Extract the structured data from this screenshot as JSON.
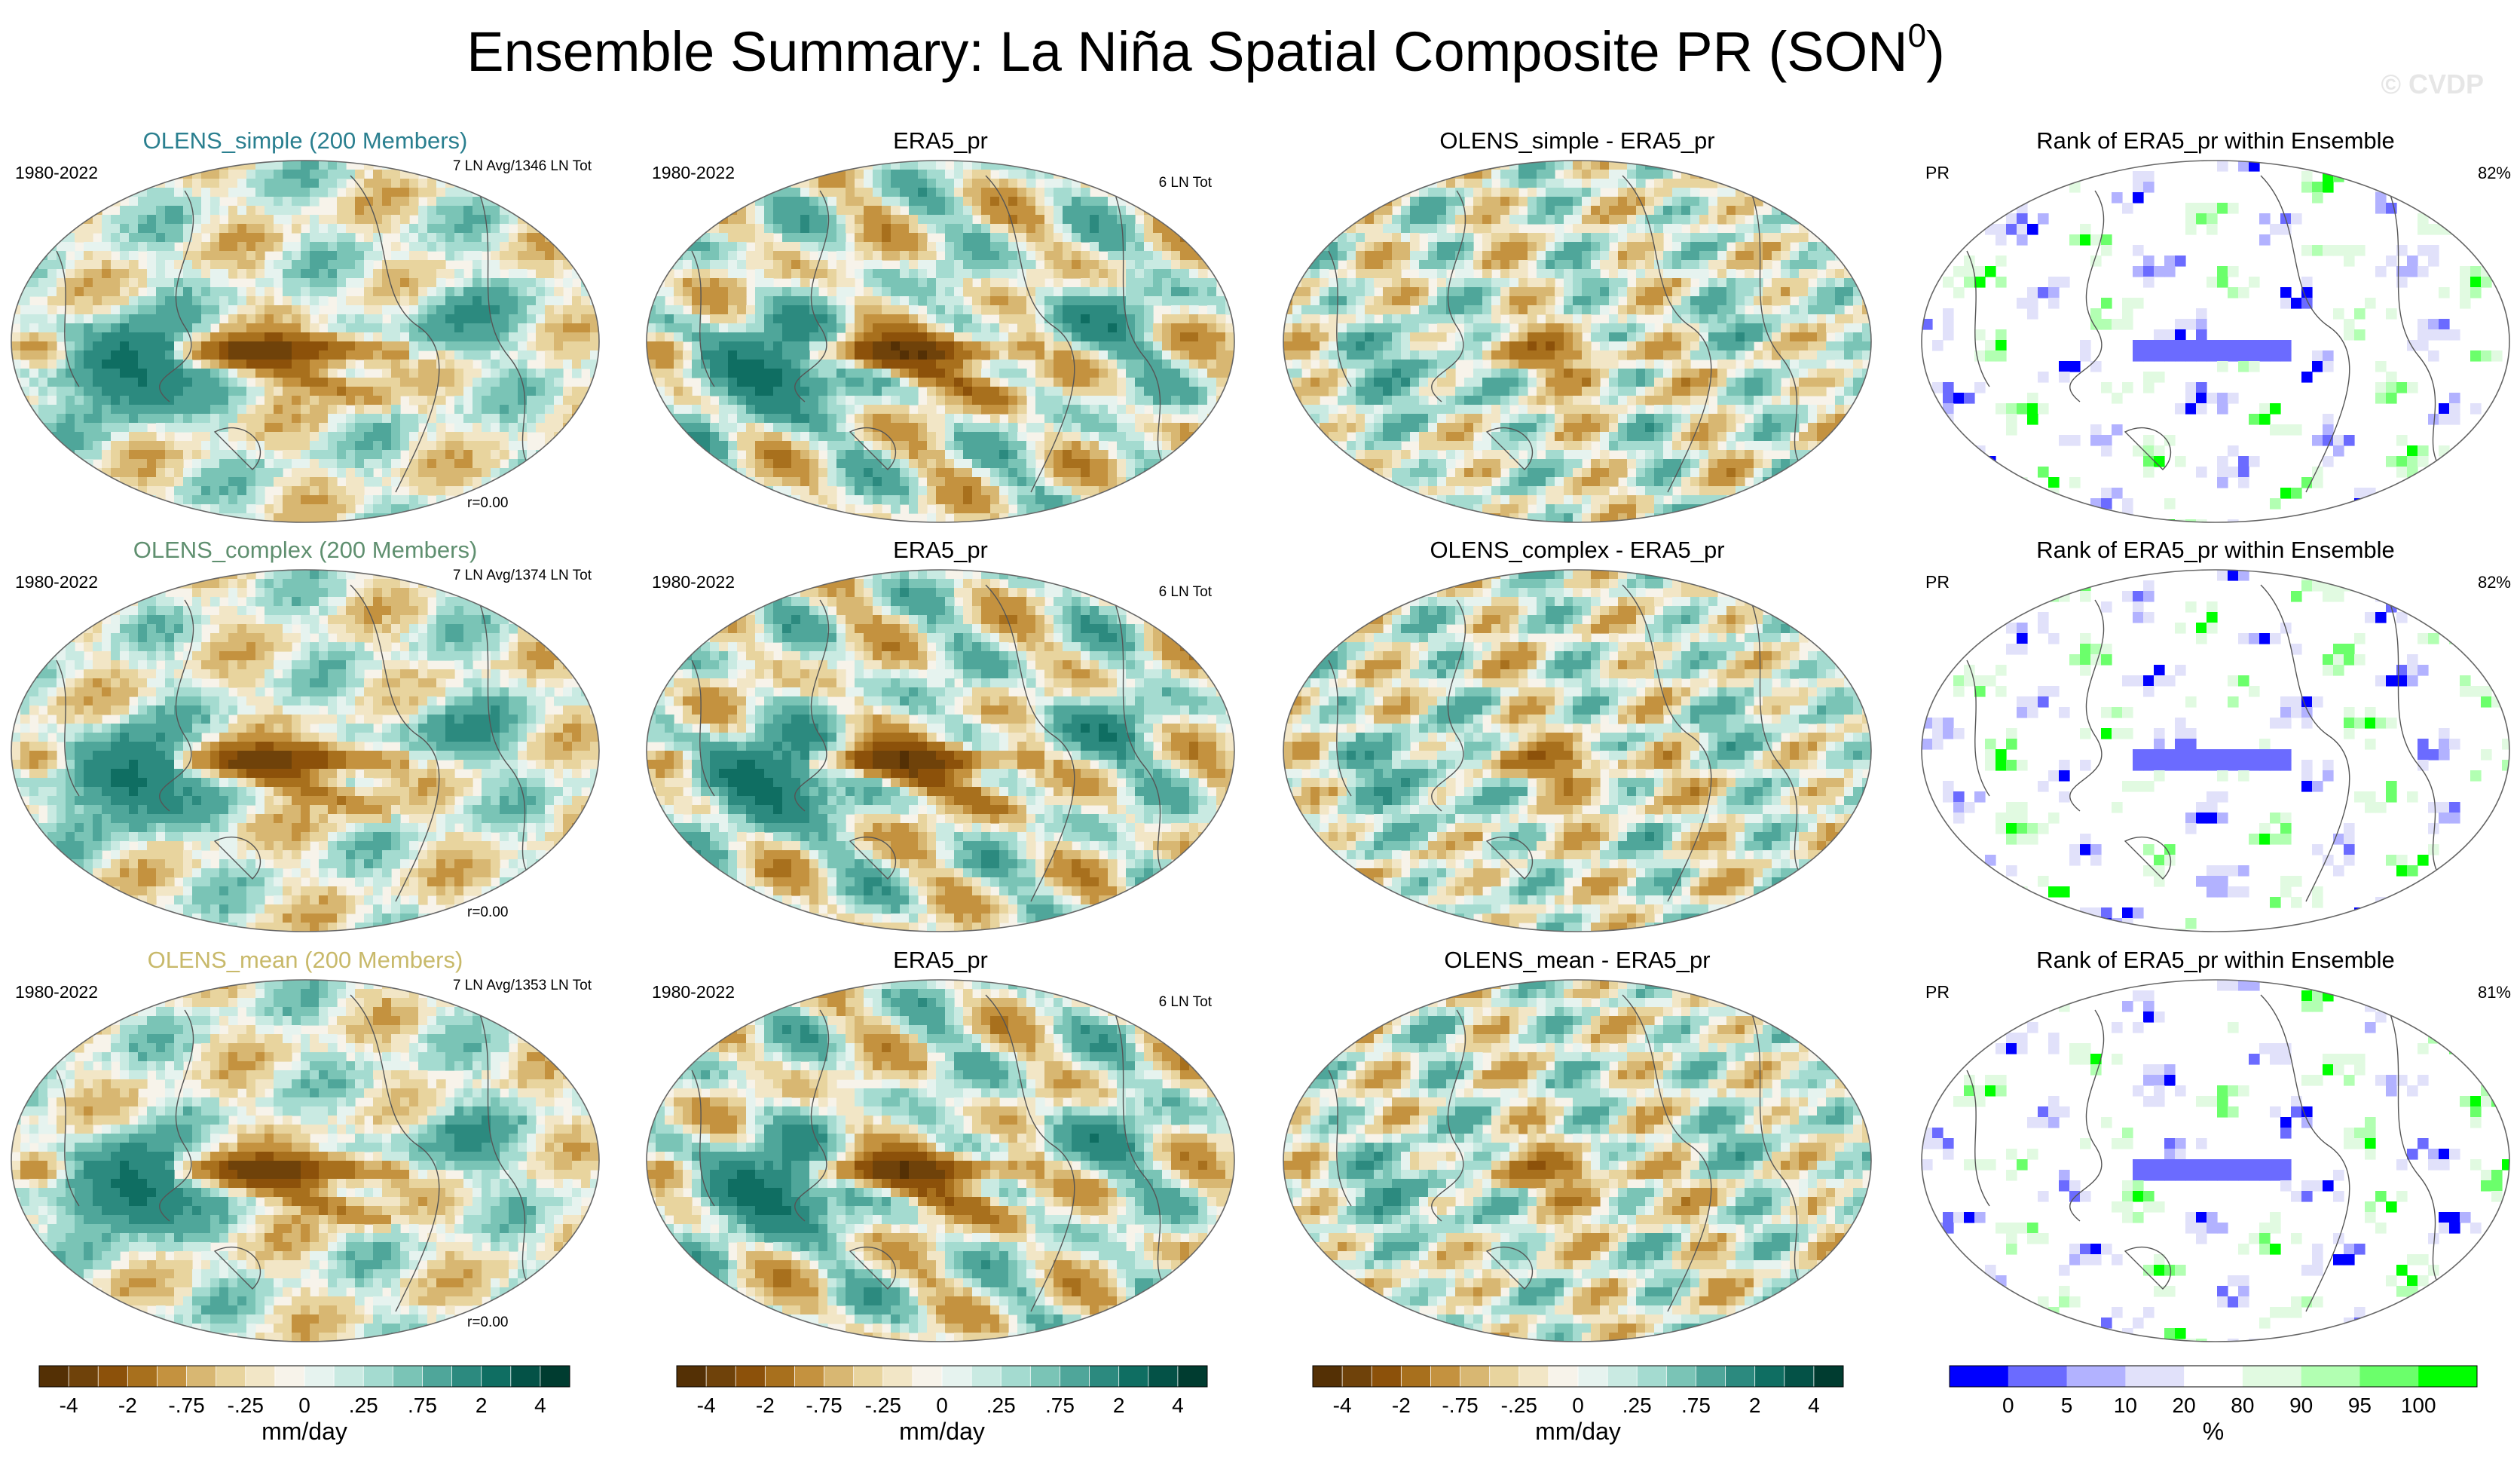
{
  "title": "Ensemble Summary: La Niña Spatial Composite PR (SON",
  "title_sup": "0",
  "title_close": ")",
  "watermark": "© CVDP",
  "colors": {
    "brown_dark": "#543005",
    "teal_dark": "#003c30",
    "rank_blue": "#0000ff",
    "rank_green": "#00ff00",
    "coast": "#555555"
  },
  "chart_data": [
    {
      "type": "heatmap",
      "row": 0,
      "col": 0,
      "title": "OLENS_simple (200 Members)",
      "title_color": "#2a7f8f",
      "left_label": "1980-2022",
      "right_label": "7 LN Avg/1346 LN Tot",
      "corr": "r=0.00",
      "field": "ensemble"
    },
    {
      "type": "heatmap",
      "row": 0,
      "col": 1,
      "title": "ERA5_pr",
      "title_color": "#000000",
      "left_label": "1980-2022",
      "right_label": "6 LN Tot",
      "field": "obs"
    },
    {
      "type": "heatmap",
      "row": 0,
      "col": 2,
      "title": "OLENS_simple - ERA5_pr",
      "title_color": "#000000",
      "left_label": "",
      "right_label": "",
      "field": "diff"
    },
    {
      "type": "heatmap",
      "row": 0,
      "col": 3,
      "title": "Rank of ERA5_pr within Ensemble",
      "title_color": "#000000",
      "left_label": "PR",
      "right_label": "82%",
      "field": "rank"
    },
    {
      "type": "heatmap",
      "row": 1,
      "col": 0,
      "title": "OLENS_complex (200 Members)",
      "title_color": "#5f8f6f",
      "left_label": "1980-2022",
      "right_label": "7 LN Avg/1374 LN Tot",
      "corr": "r=0.00",
      "field": "ensemble"
    },
    {
      "type": "heatmap",
      "row": 1,
      "col": 1,
      "title": "ERA5_pr",
      "title_color": "#000000",
      "left_label": "1980-2022",
      "right_label": "6 LN Tot",
      "field": "obs"
    },
    {
      "type": "heatmap",
      "row": 1,
      "col": 2,
      "title": "OLENS_complex - ERA5_pr",
      "title_color": "#000000",
      "left_label": "",
      "right_label": "",
      "field": "diff"
    },
    {
      "type": "heatmap",
      "row": 1,
      "col": 3,
      "title": "Rank of ERA5_pr within Ensemble",
      "title_color": "#000000",
      "left_label": "PR",
      "right_label": "82%",
      "field": "rank"
    },
    {
      "type": "heatmap",
      "row": 2,
      "col": 0,
      "title": "OLENS_mean (200 Members)",
      "title_color": "#c8b96a",
      "left_label": "1980-2022",
      "right_label": "7 LN Avg/1353 LN Tot",
      "corr": "r=0.00",
      "field": "ensemble"
    },
    {
      "type": "heatmap",
      "row": 2,
      "col": 1,
      "title": "ERA5_pr",
      "title_color": "#000000",
      "left_label": "1980-2022",
      "right_label": "6 LN Tot",
      "field": "obs"
    },
    {
      "type": "heatmap",
      "row": 2,
      "col": 2,
      "title": "OLENS_mean - ERA5_pr",
      "title_color": "#000000",
      "left_label": "",
      "right_label": "",
      "field": "diff"
    },
    {
      "type": "heatmap",
      "row": 2,
      "col": 3,
      "title": "Rank of ERA5_pr within Ensemble",
      "title_color": "#000000",
      "left_label": "PR",
      "right_label": "81%",
      "field": "rank"
    }
  ],
  "colorbars": [
    {
      "unit": "mm/day",
      "labels": [
        "-4",
        "-2",
        "-.75",
        "-.25",
        "0",
        ".25",
        ".75",
        "2",
        "4"
      ],
      "colors": [
        "#543005",
        "#6f420a",
        "#8c510a",
        "#a8701d",
        "#c4923f",
        "#d8b772",
        "#e8d49e",
        "#f2e6c6",
        "#f7f3ea",
        "#e6f3ef",
        "#c9eae2",
        "#a4dbd0",
        "#7ac4b6",
        "#4fa69a",
        "#2c8a7f",
        "#0f6e62",
        "#045247",
        "#003c30"
      ]
    },
    {
      "unit": "mm/day",
      "labels": [
        "-4",
        "-2",
        "-.75",
        "-.25",
        "0",
        ".25",
        ".75",
        "2",
        "4"
      ],
      "colors": [
        "#543005",
        "#6f420a",
        "#8c510a",
        "#a8701d",
        "#c4923f",
        "#d8b772",
        "#e8d49e",
        "#f2e6c6",
        "#f7f3ea",
        "#e6f3ef",
        "#c9eae2",
        "#a4dbd0",
        "#7ac4b6",
        "#4fa69a",
        "#2c8a7f",
        "#0f6e62",
        "#045247",
        "#003c30"
      ]
    },
    {
      "unit": "mm/day",
      "labels": [
        "-4",
        "-2",
        "-.75",
        "-.25",
        "0",
        ".25",
        ".75",
        "2",
        "4"
      ],
      "colors": [
        "#543005",
        "#6f420a",
        "#8c510a",
        "#a8701d",
        "#c4923f",
        "#d8b772",
        "#e8d49e",
        "#f2e6c6",
        "#f7f3ea",
        "#e6f3ef",
        "#c9eae2",
        "#a4dbd0",
        "#7ac4b6",
        "#4fa69a",
        "#2c8a7f",
        "#0f6e62",
        "#045247",
        "#003c30"
      ]
    },
    {
      "unit": "%",
      "labels": [
        "0",
        "5",
        "10",
        "20",
        "80",
        "90",
        "95",
        "100"
      ],
      "colors": [
        "#0000ff",
        "#6b6bff",
        "#b2b2ff",
        "#e1e1fa",
        "#ffffff",
        "#e1fae1",
        "#b2ffb2",
        "#6bff6b",
        "#00ff00"
      ]
    }
  ]
}
